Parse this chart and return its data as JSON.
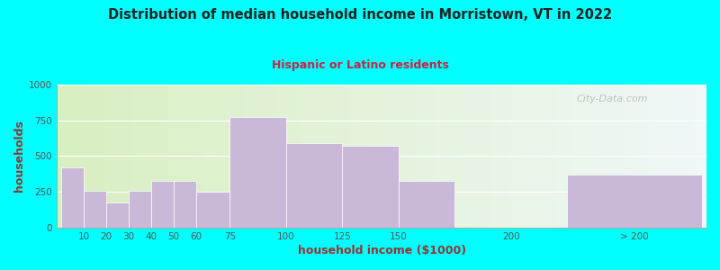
{
  "title": "Distribution of median household income in Morristown, VT in 2022",
  "subtitle": "Hispanic or Latino residents",
  "xlabel": "household income ($1000)",
  "ylabel": "households",
  "background_color": "#00FFFF",
  "plot_bg_left": "#d8efc0",
  "plot_bg_right": "#f0f8f8",
  "bar_color": "#c9b8d8",
  "bar_edge_color": "#ffffff",
  "title_color": "#222222",
  "subtitle_color": "#cc2244",
  "axis_label_color": "#993333",
  "tick_color": "#555555",
  "categories": [
    "10",
    "20",
    "30",
    "40",
    "50",
    "60",
    "75",
    "100",
    "125",
    "150",
    "200",
    "> 200"
  ],
  "values": [
    420,
    255,
    175,
    255,
    325,
    325,
    250,
    775,
    590,
    575,
    330,
    370
  ],
  "bar_lefts": [
    0,
    10,
    20,
    30,
    40,
    50,
    60,
    75,
    100,
    125,
    150,
    225
  ],
  "bar_rights": [
    10,
    20,
    30,
    40,
    50,
    60,
    75,
    100,
    125,
    150,
    175,
    285
  ],
  "tick_positions": [
    10,
    20,
    30,
    40,
    50,
    60,
    75,
    100,
    125,
    150,
    200,
    255
  ],
  "xlim": [
    -2,
    287
  ],
  "ylim": [
    0,
    1000
  ],
  "yticks": [
    0,
    250,
    500,
    750,
    1000
  ],
  "watermark": "City-Data.com"
}
